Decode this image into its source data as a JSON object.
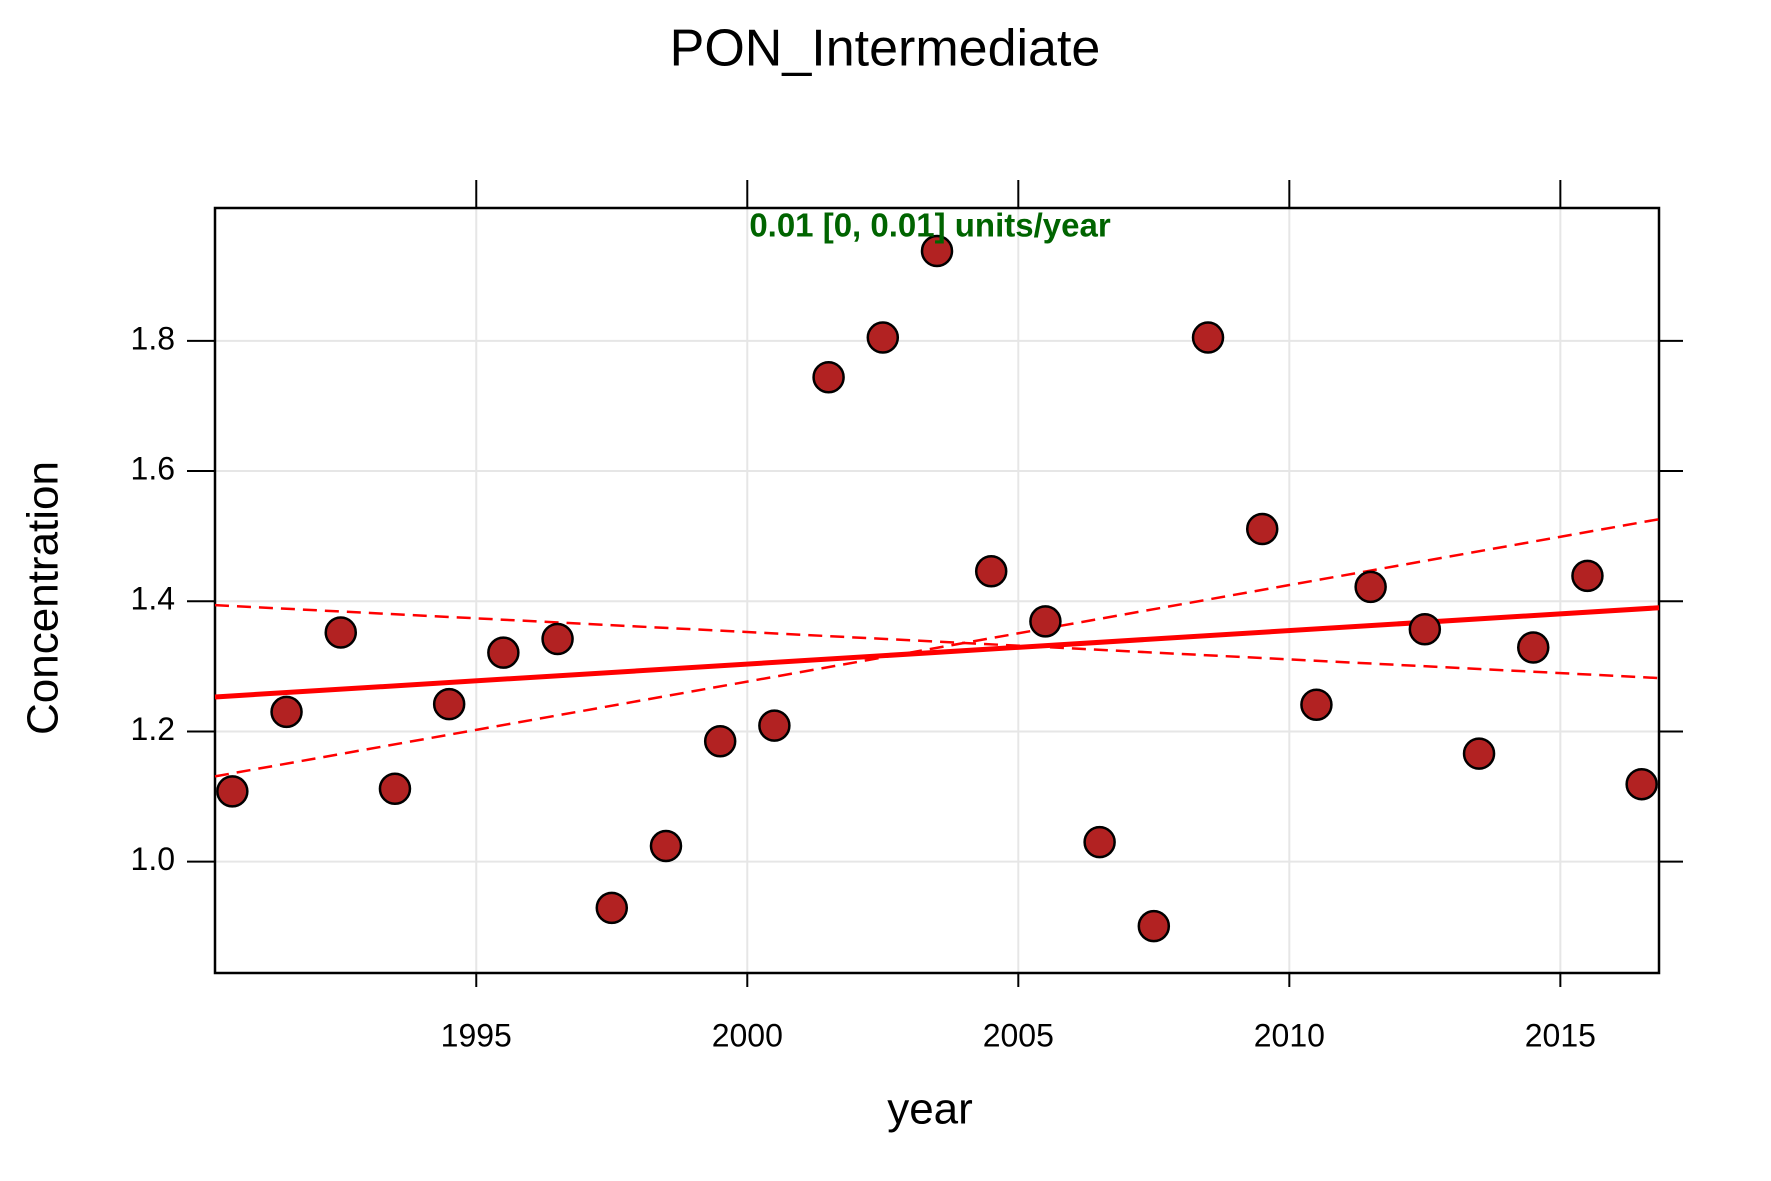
{
  "chart_data": {
    "type": "scatter",
    "title": "PON_Intermediate",
    "xlabel": "year",
    "ylabel": "Concentration",
    "annotation": "0.01 [0, 0.01] units/year",
    "annotation_color": "#006400",
    "xlim": [
      1990.18,
      2016.82
    ],
    "ylim": [
      0.829,
      2.004
    ],
    "xticks": [
      1995,
      2000,
      2005,
      2010,
      2015
    ],
    "yticks": [
      {
        "value": 1.0,
        "label": "1.0"
      },
      1.2,
      1.4,
      1.6,
      1.8
    ],
    "grid": true,
    "series": [
      {
        "color": "#b22222",
        "x": [
          1990.5,
          1991.5,
          1992.5,
          1993.5,
          1994.5,
          1995.5,
          1996.5,
          1997.5,
          1998.5,
          1999.5,
          2000.5,
          2001.5,
          2002.5,
          2003.5,
          2004.5,
          2005.5,
          2006.5,
          2007.5,
          2008.5,
          2009.5,
          2010.5,
          2011.5,
          2012.5,
          2013.5,
          2014.5,
          2015.5,
          2016.5
        ],
        "values": [
          1.108,
          1.23,
          1.352,
          1.112,
          1.242,
          1.321,
          1.342,
          0.929,
          1.024,
          1.185,
          1.209,
          1.744,
          1.805,
          1.938,
          1.446,
          1.369,
          1.03,
          0.901,
          1.805,
          1.511,
          1.241,
          1.422,
          1.357,
          1.166,
          1.329,
          1.439,
          1.119
        ]
      }
    ],
    "trend_lines": [
      {
        "style": "solid",
        "color": "#ff0000",
        "x": [
          1990.18,
          2016.82
        ],
        "values": [
          1.253,
          1.39
        ]
      },
      {
        "style": "dashed",
        "color": "#ff0000",
        "x": [
          1990.18,
          2016.82
        ],
        "values": [
          1.131,
          1.526
        ]
      },
      {
        "style": "dashed",
        "color": "#ff0000",
        "x": [
          1990.18,
          2016.82
        ],
        "values": [
          1.394,
          1.282
        ]
      }
    ]
  }
}
